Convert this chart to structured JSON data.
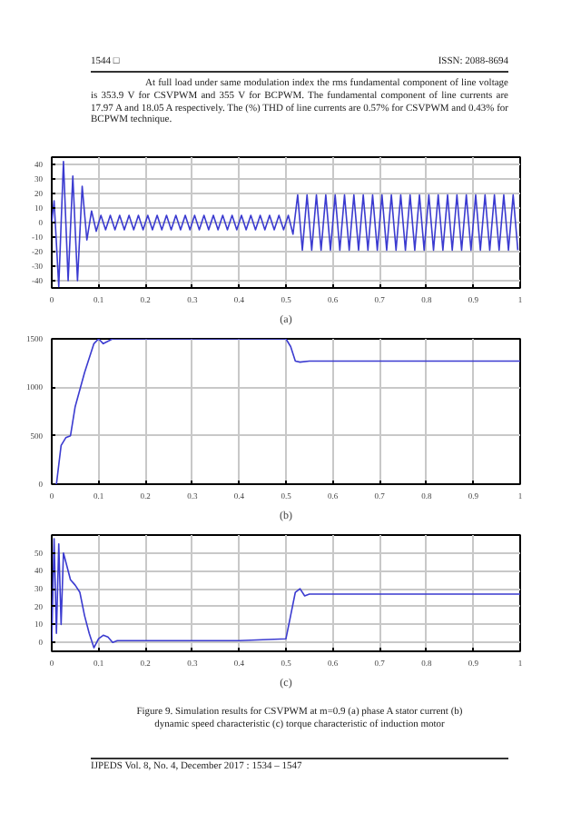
{
  "chart_data": [
    {
      "type": "line",
      "xlabel": "(a)",
      "annotations": [
        "1544 □",
        "ISSN: 2088-8694",
        "At full load under same modulation index the rms fundamental component of line voltage is 353.9 V for CSVPWM and 355 V for BCPWM. The fundamental component of line currents are 17.97 A and 18.05 A respectively. The (%) THD of line currents are 0.57% for CSVPWM and 0.43% for BCPWM technique."
      ],
      "x": [
        0,
        0.005,
        0.015,
        0.025,
        0.035,
        0.045,
        0.055,
        0.065,
        0.075,
        0.085,
        0.095,
        0.105,
        0.115,
        0.125,
        0.135,
        0.145,
        0.155,
        0.165,
        0.175,
        0.185,
        0.195,
        0.205,
        0.215,
        0.225,
        0.235,
        0.245,
        0.255,
        0.265,
        0.275,
        0.285,
        0.295,
        0.305,
        0.315,
        0.325,
        0.335,
        0.345,
        0.355,
        0.365,
        0.375,
        0.385,
        0.395,
        0.405,
        0.415,
        0.425,
        0.435,
        0.445,
        0.455,
        0.465,
        0.475,
        0.485,
        0.495,
        0.505,
        0.515,
        0.525,
        0.535,
        0.545,
        0.555,
        0.565,
        0.575,
        0.585,
        0.595,
        0.605,
        0.615,
        0.625,
        0.635,
        0.645,
        0.655,
        0.665,
        0.675,
        0.685,
        0.695,
        0.705,
        0.715,
        0.725,
        0.735,
        0.745,
        0.755,
        0.765,
        0.775,
        0.785,
        0.795,
        0.805,
        0.815,
        0.825,
        0.835,
        0.845,
        0.855,
        0.865,
        0.875,
        0.885,
        0.895,
        0.905,
        0.915,
        0.925,
        0.935,
        0.945,
        0.955,
        0.965,
        0.975,
        0.985,
        0.995
      ],
      "series": [
        {
          "color": "#3b3bd0",
          "values": [
            0,
            15,
            -44,
            42,
            -40,
            32,
            -40,
            25,
            -12,
            8,
            -6,
            5,
            -5,
            5,
            -5,
            5,
            -5,
            5,
            -5,
            5,
            -5,
            5,
            -5,
            5,
            -5,
            5,
            -5,
            5,
            -5,
            5,
            -5,
            5,
            -5,
            5,
            -5,
            5,
            -5,
            5,
            -5,
            5,
            -5,
            5,
            -5,
            5,
            -5,
            5,
            -5,
            5,
            -5,
            5,
            -5,
            5,
            -8,
            19,
            -19,
            19,
            -19,
            19,
            -19,
            19,
            -19,
            19,
            -19,
            19,
            -19,
            19,
            -19,
            19,
            -19,
            19,
            -19,
            19,
            -19,
            19,
            -19,
            19,
            -19,
            19,
            -19,
            19,
            -19,
            19,
            -19,
            19,
            -19,
            19,
            -19,
            19,
            -19,
            19,
            -19,
            19,
            -19,
            19,
            -19,
            19,
            -19,
            19,
            -19,
            19,
            -19
          ]
        }
      ],
      "xlim": [
        0,
        1
      ],
      "xticks": [
        0,
        0.1,
        0.2,
        0.3,
        0.4,
        0.5,
        0.6,
        0.7,
        0.8,
        0.9,
        1
      ],
      "ylim": [
        -45,
        45
      ],
      "yticks": [
        -40,
        -30,
        -20,
        -10,
        0,
        10,
        20,
        30,
        40
      ],
      "grid": true
    },
    {
      "type": "line",
      "xlabel": "(b)",
      "x": [
        0,
        0.01,
        0.02,
        0.03,
        0.04,
        0.05,
        0.07,
        0.09,
        0.1,
        0.11,
        0.13,
        0.2,
        0.5,
        0.51,
        0.52,
        0.53,
        0.55,
        1
      ],
      "series": [
        {
          "color": "#3b3bd0",
          "values": [
            0,
            0,
            400,
            480,
            500,
            800,
            1150,
            1450,
            1500,
            1450,
            1500,
            1500,
            1500,
            1420,
            1270,
            1260,
            1270,
            1270
          ]
        }
      ],
      "xlim": [
        0,
        1
      ],
      "xticks": [
        0,
        0.1,
        0.2,
        0.3,
        0.4,
        0.5,
        0.6,
        0.7,
        0.8,
        0.9,
        1
      ],
      "ylim": [
        0,
        1500
      ],
      "yticks": [
        0,
        500,
        1000,
        1500
      ],
      "grid": true
    },
    {
      "type": "line",
      "xlabel": "(c)",
      "annotations": [
        "Figure 9. Simulation results for CSVPWM at m=0.9 (a) phase A stator current (b) dynamic speed characteristic (c) torque characteristic of induction motor",
        "IJPEDS  Vol. 8, No. 4, December 2017 : 1534 – 1547"
      ],
      "x": [
        0,
        0.005,
        0.01,
        0.015,
        0.02,
        0.025,
        0.03,
        0.04,
        0.05,
        0.06,
        0.07,
        0.08,
        0.09,
        0.1,
        0.11,
        0.12,
        0.13,
        0.14,
        0.15,
        0.2,
        0.3,
        0.4,
        0.5,
        0.51,
        0.52,
        0.53,
        0.54,
        0.55,
        0.6,
        0.7,
        0.8,
        0.9,
        1
      ],
      "series": [
        {
          "color": "#3b3bd0",
          "values": [
            0,
            58,
            5,
            55,
            10,
            50,
            45,
            35,
            32,
            28,
            15,
            5,
            -3,
            2,
            4,
            3,
            0,
            1,
            1,
            1,
            1,
            1,
            2,
            15,
            28,
            30,
            26,
            27,
            27,
            27,
            27,
            27,
            27
          ]
        }
      ],
      "xlim": [
        0,
        1
      ],
      "xticks": [
        0,
        0.1,
        0.2,
        0.3,
        0.4,
        0.5,
        0.6,
        0.7,
        0.8,
        0.9,
        1
      ],
      "ylim": [
        -5,
        60
      ],
      "yticks": [
        0,
        10,
        20,
        30,
        40,
        50
      ],
      "grid": true
    }
  ]
}
